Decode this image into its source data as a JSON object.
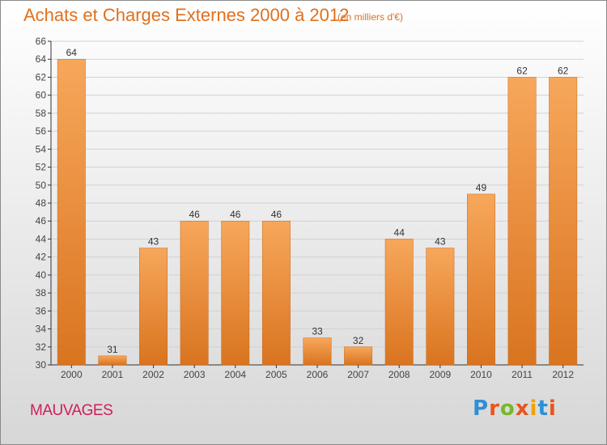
{
  "header": {
    "title": "Achats et Charges Externes 2000 à 2012",
    "subtitle": "(en milliers d'€)"
  },
  "footer": {
    "place": "MAUVAGES",
    "logo_letters": [
      {
        "char": "P",
        "color": "#2e8fd6"
      },
      {
        "char": "r",
        "color": "#e8541e"
      },
      {
        "char": "o",
        "color": "#77b82a"
      },
      {
        "char": "x",
        "color": "#e8541e"
      },
      {
        "char": "i",
        "color": "#f0a30a"
      },
      {
        "char": "t",
        "color": "#2e8fd6"
      },
      {
        "char": "i",
        "color": "#e8541e"
      }
    ]
  },
  "colors": {
    "bar_light": "#f7a75b",
    "bar_dark": "#d9741f",
    "axis": "#333333",
    "grid": "#d2d2d2"
  },
  "chart_data": {
    "type": "bar",
    "title": "Achats et Charges Externes 2000 à 2012",
    "subtitle": "(en milliers d'€)",
    "categories": [
      "2000",
      "2001",
      "2002",
      "2003",
      "2004",
      "2005",
      "2006",
      "2007",
      "2008",
      "2009",
      "2010",
      "2011",
      "2012"
    ],
    "values": [
      64,
      31,
      43,
      46,
      46,
      46,
      33,
      32,
      44,
      43,
      49,
      62,
      62
    ],
    "ylim": [
      30,
      66
    ],
    "yticks": [
      30,
      32,
      34,
      36,
      38,
      40,
      42,
      44,
      46,
      48,
      50,
      52,
      54,
      56,
      58,
      60,
      62,
      64,
      66
    ],
    "grid": true,
    "xlabel": "",
    "ylabel": ""
  }
}
